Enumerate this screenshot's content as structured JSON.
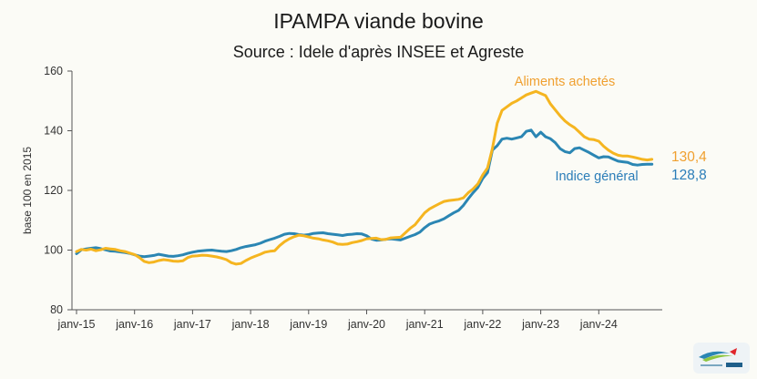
{
  "chart_data": {
    "type": "line",
    "title": "IPAMPA viande bovine",
    "subtitle": "Source : Idele d'après INSEE et Agreste",
    "ylabel": "base 100 en 2015",
    "ylim": [
      80,
      160
    ],
    "yticks": [
      "80",
      "100",
      "120",
      "140",
      "160"
    ],
    "xticks": [
      "janv-15",
      "janv-16",
      "janv-17",
      "janv-18",
      "janv-19",
      "janv-20",
      "janv-21",
      "janv-22",
      "janv-23",
      "janv-24"
    ],
    "x_start": "janv-15",
    "x_end": "déc-24",
    "series": [
      {
        "name": "Aliments achetés",
        "color": "#f5b520",
        "label_color": "#f0a030",
        "end_label": "130,4",
        "values": [
          99.5,
          100.2,
          100.0,
          100.3,
          99.8,
          100.1,
          100.6,
          100.4,
          100.2,
          99.8,
          99.5,
          99.0,
          98.5,
          97.5,
          96.2,
          95.8,
          96.0,
          96.5,
          96.8,
          96.6,
          96.3,
          96.2,
          96.4,
          97.5,
          98.0,
          98.1,
          98.3,
          98.2,
          98.0,
          97.7,
          97.3,
          96.8,
          95.8,
          95.3,
          95.5,
          96.5,
          97.3,
          98.0,
          98.6,
          99.3,
          99.6,
          99.8,
          101.5,
          102.8,
          103.8,
          104.5,
          105.0,
          104.8,
          104.4,
          104.0,
          103.8,
          103.4,
          103.1,
          102.7,
          102.0,
          101.9,
          102.0,
          102.5,
          102.8,
          103.2,
          103.8,
          103.9,
          104.0,
          103.5,
          103.6,
          104.1,
          104.2,
          104.3,
          105.8,
          107.3,
          108.5,
          110.5,
          112.5,
          113.8,
          114.7,
          115.5,
          116.3,
          116.6,
          116.8,
          117.0,
          117.5,
          119.2,
          120.5,
          122.2,
          125.2,
          127.5,
          134.0,
          142.5,
          146.8,
          148.0,
          149.2,
          150.0,
          151.0,
          152.0,
          152.6,
          153.2,
          152.5,
          151.8,
          149.0,
          147.0,
          145.0,
          143.3,
          142.0,
          141.0,
          139.5,
          138.0,
          137.2,
          137.0,
          136.5,
          134.8,
          133.5,
          132.5,
          131.8,
          131.5,
          131.5,
          131.2,
          130.8,
          130.4,
          130.2,
          130.4
        ]
      },
      {
        "name": "Indice général",
        "color": "#2b86b3",
        "label_color": "#2b7db8",
        "end_label": "128,8",
        "values": [
          98.8,
          100.1,
          100.4,
          100.6,
          100.8,
          100.5,
          100.1,
          99.7,
          99.6,
          99.4,
          99.2,
          98.9,
          98.4,
          98.0,
          97.8,
          98.0,
          98.2,
          98.6,
          98.3,
          98.0,
          97.9,
          98.1,
          98.4,
          98.9,
          99.3,
          99.6,
          99.8,
          99.9,
          100.0,
          99.8,
          99.6,
          99.5,
          99.8,
          100.2,
          100.8,
          101.2,
          101.5,
          101.8,
          102.3,
          103.0,
          103.5,
          104.0,
          104.6,
          105.3,
          105.6,
          105.5,
          105.2,
          105.0,
          105.2,
          105.6,
          105.7,
          105.8,
          105.5,
          105.3,
          105.1,
          104.9,
          105.2,
          105.3,
          105.5,
          105.4,
          104.8,
          103.7,
          103.3,
          103.4,
          103.6,
          103.8,
          103.6,
          103.4,
          104.0,
          104.6,
          105.2,
          106.0,
          107.5,
          108.7,
          109.3,
          109.8,
          110.5,
          111.5,
          112.5,
          113.3,
          115.0,
          117.2,
          119.2,
          121.0,
          124.0,
          126.0,
          133.5,
          135.0,
          137.2,
          137.5,
          137.2,
          137.6,
          138.0,
          139.8,
          140.2,
          138.0,
          139.5,
          138.0,
          137.3,
          136.0,
          134.0,
          133.0,
          132.6,
          134.0,
          134.3,
          133.5,
          132.7,
          131.8,
          130.9,
          131.3,
          131.2,
          130.5,
          129.8,
          129.6,
          129.4,
          128.7,
          128.5,
          128.7,
          128.8,
          128.8
        ]
      }
    ],
    "grid": false,
    "legend": "inline labels"
  }
}
